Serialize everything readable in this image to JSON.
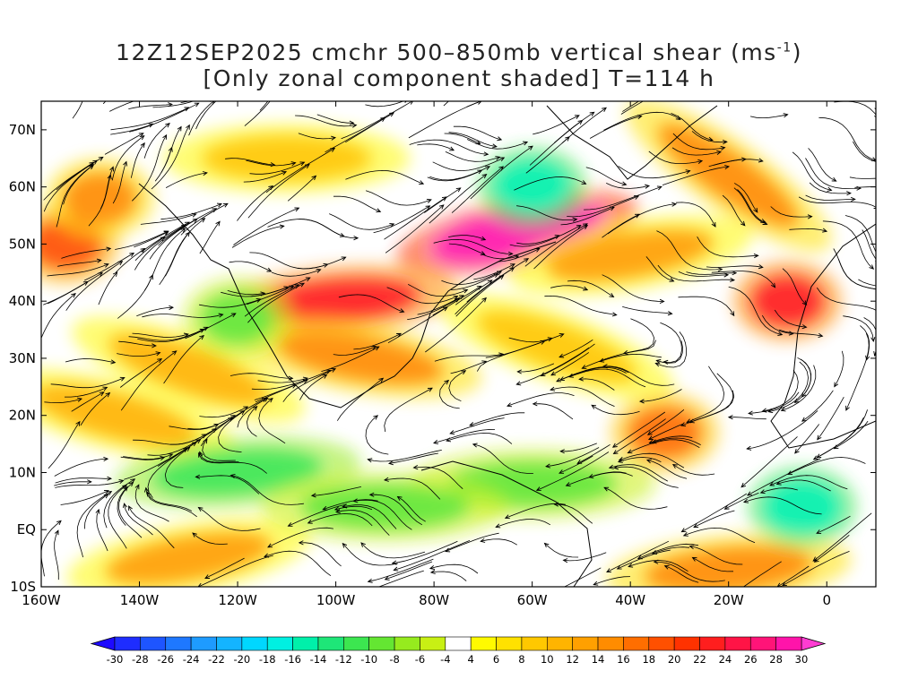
{
  "title": {
    "line1_prefix": "12Z12SEP2025 cmchr 500–850mb vertical shear (ms",
    "line1_sup": "-1",
    "line1_suffix": ")",
    "line2": "[Only zonal component shaded] T=114 h"
  },
  "map": {
    "region": "North Atlantic and eastern Pacific, 160W to 10E, 10S to 75N",
    "lon_range": [
      -160,
      10
    ],
    "lat_range": [
      -10,
      75
    ],
    "lon_ticks": [
      {
        "value": -160,
        "label": "160W"
      },
      {
        "value": -140,
        "label": "140W"
      },
      {
        "value": -120,
        "label": "120W"
      },
      {
        "value": -100,
        "label": "100W"
      },
      {
        "value": -80,
        "label": "80W"
      },
      {
        "value": -60,
        "label": "60W"
      },
      {
        "value": -40,
        "label": "40W"
      },
      {
        "value": -20,
        "label": "20W"
      },
      {
        "value": 0,
        "label": "0"
      }
    ],
    "lat_ticks": [
      {
        "value": -10,
        "label": "10S"
      },
      {
        "value": 0,
        "label": "EQ"
      },
      {
        "value": 10,
        "label": "10N"
      },
      {
        "value": 20,
        "label": "20N"
      },
      {
        "value": 30,
        "label": "30N"
      },
      {
        "value": 40,
        "label": "40N"
      },
      {
        "value": 50,
        "label": "50N"
      },
      {
        "value": 60,
        "label": "60N"
      },
      {
        "value": 70,
        "label": "70N"
      }
    ],
    "shear_features": [
      {
        "lon": -63,
        "lat": 52,
        "u": 29,
        "shape": "band",
        "angle": -12
      },
      {
        "lon": -100,
        "lat": 40,
        "u": 24,
        "shape": "band",
        "angle": -5
      },
      {
        "lon": -8,
        "lat": 40,
        "u": 23,
        "shape": "blob",
        "angle": 0
      },
      {
        "lon": -155,
        "lat": 50,
        "u": 20,
        "shape": "blob",
        "angle": 0
      },
      {
        "lon": -148,
        "lat": 58,
        "u": 16,
        "shape": "blob",
        "angle": 0
      },
      {
        "lon": -95,
        "lat": 30,
        "u": 16,
        "shape": "band",
        "angle": 10
      },
      {
        "lon": -40,
        "lat": 48,
        "u": 14,
        "shape": "band",
        "angle": -10
      },
      {
        "lon": -20,
        "lat": 62,
        "u": 15,
        "shape": "band",
        "angle": 35
      },
      {
        "lon": -55,
        "lat": 32,
        "u": 10,
        "shape": "band",
        "angle": 20
      },
      {
        "lon": -130,
        "lat": 28,
        "u": 12,
        "shape": "band",
        "angle": 20
      },
      {
        "lon": -145,
        "lat": 20,
        "u": 12,
        "shape": "band",
        "angle": 15
      },
      {
        "lon": -130,
        "lat": -5,
        "u": 14,
        "shape": "band",
        "angle": -10
      },
      {
        "lon": -20,
        "lat": -7,
        "u": 16,
        "shape": "band",
        "angle": -5
      },
      {
        "lon": -110,
        "lat": 65,
        "u": 10,
        "shape": "band",
        "angle": 0
      },
      {
        "lon": -33,
        "lat": 17,
        "u": 18,
        "shape": "blob",
        "angle": 0
      },
      {
        "lon": -60,
        "lat": 60,
        "u": -14,
        "shape": "blob",
        "angle": 0
      },
      {
        "lon": -120,
        "lat": 10,
        "u": -10,
        "shape": "band",
        "angle": -5
      },
      {
        "lon": -60,
        "lat": 8,
        "u": -9,
        "shape": "band",
        "angle": 0
      },
      {
        "lon": -90,
        "lat": 4,
        "u": -9,
        "shape": "band",
        "angle": 0
      },
      {
        "lon": -5,
        "lat": 4,
        "u": -14,
        "shape": "blob",
        "angle": 0
      },
      {
        "lon": -120,
        "lat": 37,
        "u": -8,
        "shape": "blob",
        "angle": 0
      }
    ],
    "streamline_flow": [
      {
        "lon": -150,
        "lat": 58,
        "dir": 45
      },
      {
        "lon": -100,
        "lat": 45,
        "dir": 0
      },
      {
        "lon": -60,
        "lat": 50,
        "dir": 10
      },
      {
        "lon": -20,
        "lat": 40,
        "dir": -30
      },
      {
        "lon": -140,
        "lat": 22,
        "dir": 20
      },
      {
        "lon": -40,
        "lat": 20,
        "dir": 180
      },
      {
        "lon": -60,
        "lat": 5,
        "dir": 170
      },
      {
        "lon": -120,
        "lat": 0,
        "dir": 175
      },
      {
        "lon": -10,
        "lat": -5,
        "dir": 185
      }
    ]
  },
  "colorbar": {
    "boundaries": [
      -30,
      -28,
      -26,
      -24,
      -22,
      -20,
      -18,
      -16,
      -14,
      -12,
      -10,
      -8,
      -6,
      -4,
      4,
      6,
      8,
      10,
      12,
      14,
      16,
      18,
      20,
      22,
      24,
      26,
      28,
      30
    ],
    "under_color": "#1e0aff",
    "over_color": "#ff3cd2",
    "colors": [
      "#1e2dff",
      "#1e55ff",
      "#1e78ff",
      "#1e9bff",
      "#14b4ff",
      "#00d7ff",
      "#00f0e1",
      "#00f0aa",
      "#1ee678",
      "#3ce650",
      "#64e632",
      "#96eb1e",
      "#c8f014",
      "#ffffff",
      "#fffa00",
      "#ffe100",
      "#ffc800",
      "#ffb400",
      "#ffa000",
      "#ff8c00",
      "#ff6e00",
      "#ff5000",
      "#ff3200",
      "#ff1e1e",
      "#ff1446",
      "#ff1478",
      "#ff14aa"
    ],
    "labels": [
      "-30",
      "-28",
      "-26",
      "-24",
      "-22",
      "-20",
      "-18",
      "-16",
      "-14",
      "-12",
      "-10",
      "-8",
      "-6",
      "-4",
      "4",
      "6",
      "8",
      "10",
      "12",
      "14",
      "16",
      "18",
      "20",
      "22",
      "24",
      "26",
      "28",
      "30"
    ]
  }
}
